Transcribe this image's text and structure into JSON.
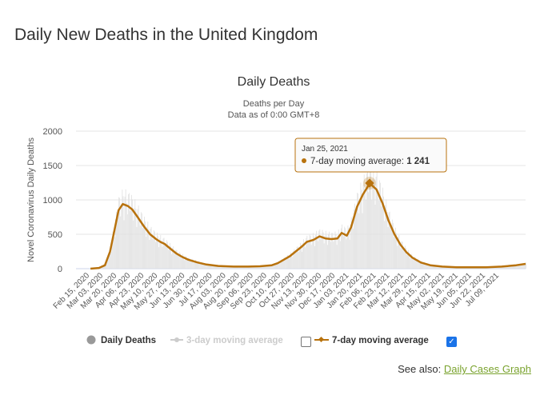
{
  "page_title": "Daily New Deaths in the United Kingdom",
  "see_also_label": "See also:",
  "see_also_link": "Daily Cases Graph",
  "checkbox_3day": false,
  "checkbox_7day": true,
  "tooltip": {
    "date": "Jan 25, 2021",
    "label": "7-day moving average:",
    "value": "1 241"
  },
  "colors": {
    "avg7": "#b8720d",
    "bars": "#e0e0e0",
    "avg3": "#cccccc",
    "grid": "#e6e6e6"
  },
  "chart_data": {
    "type": "line",
    "title": "Daily Deaths",
    "subtitle": [
      "Deaths per Day",
      "Data as of 0:00 GMT+8"
    ],
    "ylabel": "Novel Coronavirus Daily Deaths",
    "xlabel": "",
    "ylim": [
      0,
      2000
    ],
    "yticks": [
      0,
      500,
      1000,
      1500,
      2000
    ],
    "x_unit": "days since Feb 15, 2020",
    "xlim": [
      0,
      528
    ],
    "xtick_labels": [
      "Feb 15, 2020",
      "Mar 03, 2020",
      "Mar 20, 2020",
      "Apr 06, 2020",
      "Apr 23, 2020",
      "May 10, 2020",
      "May 27, 2020",
      "Jun 13, 2020",
      "Jun 30, 2020",
      "Jul 17, 2020",
      "Aug 03, 2020",
      "Aug 20, 2020",
      "Sep 06, 2020",
      "Sep 23, 2020",
      "Oct 10, 2020",
      "Oct 27, 2020",
      "Nov 13, 2020",
      "Nov 30, 2020",
      "Dec 17, 2020",
      "Jan 03, 2021",
      "Jan 20, 2021",
      "Feb 06, 2021",
      "Feb 23, 2021",
      "Mar 12, 2021",
      "Mar 29, 2021",
      "Apr 15, 2021",
      "May 02, 2021",
      "May 19, 2021",
      "Jun 05, 2021",
      "Jun 22, 2021",
      "Jul 09, 2021"
    ],
    "legend": [
      {
        "name": "Daily Deaths",
        "enabled": true
      },
      {
        "name": "3-day moving average",
        "enabled": false
      },
      {
        "name": "7-day moving average",
        "enabled": true
      }
    ],
    "legend_position": "bottom",
    "series": [
      {
        "name": "7-day moving average",
        "x": [
          17,
          27,
          34,
          40,
          45,
          50,
          55,
          61,
          66,
          73,
          80,
          87,
          94,
          99,
          104,
          111,
          118,
          125,
          132,
          143,
          153,
          167,
          185,
          202,
          216,
          230,
          237,
          244,
          251,
          258,
          265,
          271,
          279,
          286,
          293,
          300,
          307,
          312,
          318,
          323,
          330,
          337,
          345,
          353,
          360,
          367,
          374,
          381,
          388,
          395,
          405,
          416,
          430,
          447,
          482,
          500,
          517,
          528
        ],
        "y": [
          0,
          10,
          50,
          250,
          550,
          850,
          940,
          910,
          860,
          740,
          610,
          500,
          430,
          390,
          360,
          290,
          220,
          170,
          130,
          90,
          60,
          40,
          30,
          30,
          35,
          50,
          80,
          130,
          180,
          250,
          320,
          390,
          420,
          470,
          440,
          430,
          440,
          520,
          480,
          600,
          900,
          1080,
          1241,
          1150,
          950,
          700,
          500,
          350,
          240,
          160,
          90,
          50,
          30,
          20,
          20,
          30,
          50,
          70
        ]
      }
    ]
  }
}
